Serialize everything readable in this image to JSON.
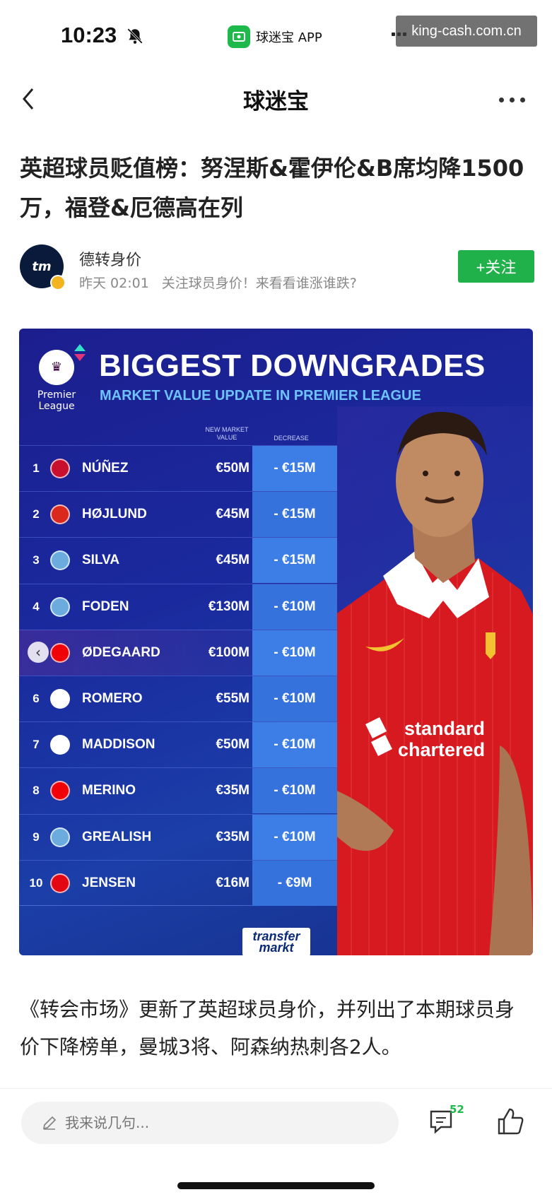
{
  "status_bar": {
    "time": "10:23",
    "app_name": "球迷宝 APP",
    "watermark": "king-cash.com.cn"
  },
  "nav": {
    "title": "球迷宝"
  },
  "article": {
    "headline": "英超球员贬值榜：努涅斯&霍伊伦&B席均降1500万，福登&厄德高在列",
    "author": {
      "name": "德转身价",
      "avatar_text": "tm",
      "time": "昨天 02:01",
      "bio": "关注球员身价！来看看谁涨谁跌?",
      "follow_label": "+关注"
    },
    "graphic": {
      "logo_label": "Premier League",
      "title": "BIGGEST DOWNGRADES",
      "subtitle": "MARKET VALUE UPDATE IN PREMIER LEAGUE",
      "col_new": "NEW MARKET VALUE",
      "col_decrease": "DECREASE",
      "source": "transfer markt",
      "rows": [
        {
          "rank": "1",
          "name": "NÚÑEZ",
          "value": "€50M",
          "decrease": "- €15M",
          "club_color": "#c8102e"
        },
        {
          "rank": "2",
          "name": "HØJLUND",
          "value": "€45M",
          "decrease": "- €15M",
          "club_color": "#da291c"
        },
        {
          "rank": "3",
          "name": "SILVA",
          "value": "€45M",
          "decrease": "- €15M",
          "club_color": "#6cabdd"
        },
        {
          "rank": "4",
          "name": "FODEN",
          "value": "€130M",
          "decrease": "- €10M",
          "club_color": "#6cabdd"
        },
        {
          "rank": "5",
          "name": "ØDEGAARD",
          "value": "€100M",
          "decrease": "- €10M",
          "club_color": "#ef0107"
        },
        {
          "rank": "6",
          "name": "ROMERO",
          "value": "€55M",
          "decrease": "- €10M",
          "club_color": "#ffffff"
        },
        {
          "rank": "7",
          "name": "MADDISON",
          "value": "€50M",
          "decrease": "- €10M",
          "club_color": "#ffffff"
        },
        {
          "rank": "8",
          "name": "MERINO",
          "value": "€35M",
          "decrease": "- €10M",
          "club_color": "#ef0107"
        },
        {
          "rank": "9",
          "name": "GREALISH",
          "value": "€35M",
          "decrease": "- €10M",
          "club_color": "#6cabdd"
        },
        {
          "rank": "10",
          "name": "JENSEN",
          "value": "€16M",
          "decrease": "- €9M",
          "club_color": "#e30613"
        }
      ]
    },
    "body": "《转会市场》更新了英超球员身价，并列出了本期球员身价下降榜单，曼城3将、阿森纳热刺各2人。"
  },
  "bottom_bar": {
    "comment_placeholder": "我来说几句...",
    "comment_count": "52"
  },
  "colors": {
    "accent_green": "#21b14a",
    "graphic_bg": "#1c2a9e",
    "decrease_cell": "#3d7ee6"
  }
}
